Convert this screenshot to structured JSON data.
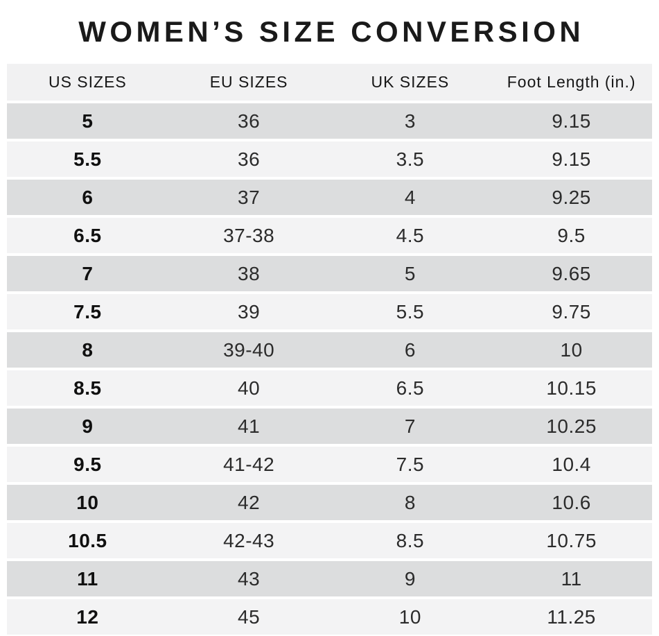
{
  "title": "WOMEN’S SIZE CONVERSION",
  "chart_data": {
    "type": "table",
    "title": "WOMEN’S SIZE CONVERSION",
    "columns": [
      "US SIZES",
      "EU SIZES",
      "UK SIZES",
      "Foot Length (in.)"
    ],
    "rows": [
      [
        "5",
        "36",
        "3",
        "9.15"
      ],
      [
        "5.5",
        "36",
        "3.5",
        "9.15"
      ],
      [
        "6",
        "37",
        "4",
        "9.25"
      ],
      [
        "6.5",
        "37-38",
        "4.5",
        "9.5"
      ],
      [
        "7",
        "38",
        "5",
        "9.65"
      ],
      [
        "7.5",
        "39",
        "5.5",
        "9.75"
      ],
      [
        "8",
        "39-40",
        "6",
        "10"
      ],
      [
        "8.5",
        "40",
        "6.5",
        "10.15"
      ],
      [
        "9",
        "41",
        "7",
        "10.25"
      ],
      [
        "9.5",
        "41-42",
        "7.5",
        "10.4"
      ],
      [
        "10",
        "42",
        "8",
        "10.6"
      ],
      [
        "10.5",
        "42-43",
        "8.5",
        "10.75"
      ],
      [
        "11",
        "43",
        "9",
        "11"
      ],
      [
        "12",
        "45",
        "10",
        "11.25"
      ]
    ],
    "layout": {
      "striping": "alternating dark/light gray rows starting dark",
      "first_column_bold": true,
      "row_separator": "thin white line"
    }
  },
  "colors": {
    "background": "#ffffff",
    "header_bg": "#f1f1f2",
    "row_dark": "#dcddde",
    "row_light": "#f3f3f4",
    "separator": "#ffffff",
    "title_text": "#1a1a1a",
    "body_text": "#2b2b2b"
  }
}
